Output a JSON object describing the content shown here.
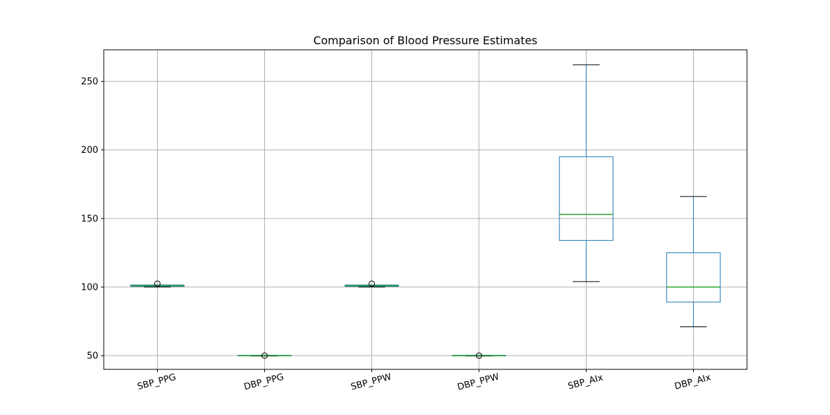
{
  "chart_data": {
    "type": "box",
    "title": "Comparison of Blood Pressure Estimates",
    "xlabel": "",
    "ylabel": "",
    "ylim": [
      40,
      273
    ],
    "yticks": [
      50,
      100,
      150,
      200,
      250
    ],
    "grid": true,
    "categories": [
      "SBP_PPG",
      "DBP_PPG",
      "SBP_PPW",
      "DBP_PPW",
      "SBP_AIx",
      "DBP_AIx"
    ],
    "boxes": [
      {
        "category": "SBP_PPG",
        "whisker_low": 100,
        "q1": 100.5,
        "median": 101,
        "q3": 101.5,
        "whisker_high": 101.5,
        "outliers": [
          102.5
        ]
      },
      {
        "category": "DBP_PPG",
        "whisker_low": 49.7,
        "q1": 49.8,
        "median": 50,
        "q3": 50.2,
        "whisker_high": 50.3,
        "outliers": [
          50
        ]
      },
      {
        "category": "SBP_PPW",
        "whisker_low": 100,
        "q1": 100.5,
        "median": 101,
        "q3": 101.5,
        "whisker_high": 101.5,
        "outliers": [
          102.5
        ]
      },
      {
        "category": "DBP_PPW",
        "whisker_low": 49.7,
        "q1": 49.8,
        "median": 50,
        "q3": 50.2,
        "whisker_high": 50.3,
        "outliers": [
          50
        ]
      },
      {
        "category": "SBP_AIx",
        "whisker_low": 104,
        "q1": 134,
        "median": 153,
        "q3": 195,
        "whisker_high": 262,
        "outliers": []
      },
      {
        "category": "DBP_AIx",
        "whisker_low": 71,
        "q1": 89,
        "median": 100,
        "q3": 125,
        "whisker_high": 166,
        "outliers": []
      }
    ],
    "colors": {
      "box": "#1f77b4",
      "median": "#2ca02c",
      "whisker_cap": "#000000",
      "grid": "#b0b0b0",
      "outlier_edge": "#000000"
    }
  }
}
